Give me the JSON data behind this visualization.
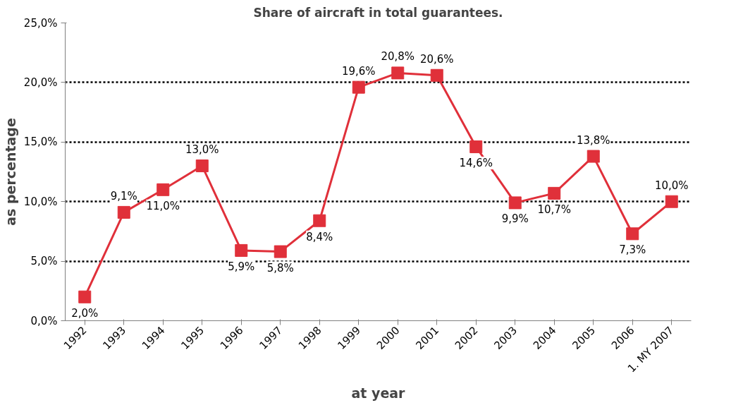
{
  "chart_data": {
    "type": "line",
    "title": "Share of aircraft in total guarantees.",
    "xlabel": "at year",
    "ylabel": "as percentage",
    "categories": [
      "1992",
      "1993",
      "1994",
      "1995",
      "1996",
      "1997",
      "1998",
      "1999",
      "2000",
      "2001",
      "2002",
      "2003",
      "2004",
      "2005",
      "2006",
      "1. MY 2007"
    ],
    "series": [
      {
        "color": "#e0303a",
        "values": [
          2.0,
          9.1,
          11.0,
          13.0,
          5.9,
          5.8,
          8.4,
          19.6,
          20.8,
          20.6,
          14.6,
          9.9,
          10.7,
          13.8,
          7.3,
          10.0
        ],
        "value_labels": [
          "2,0%",
          "9,1%",
          "11,0%",
          "13,0%",
          "5,9%",
          "5,8%",
          "8,4%",
          "19,6%",
          "20,8%",
          "20,6%",
          "14,6%",
          "9,9%",
          "10,7%",
          "13,8%",
          "7,3%",
          "10,0%"
        ]
      }
    ],
    "ylim": [
      0,
      25
    ],
    "yticks": [
      {
        "value": 0,
        "label": "0,0%"
      },
      {
        "value": 5,
        "label": "5,0%"
      },
      {
        "value": 10,
        "label": "10,0%"
      },
      {
        "value": 15,
        "label": "15,0%"
      },
      {
        "value": 20,
        "label": "20,0%"
      },
      {
        "value": 25,
        "label": "25,0%"
      }
    ],
    "grid": "y",
    "marker": "square",
    "line_style": "solid"
  }
}
